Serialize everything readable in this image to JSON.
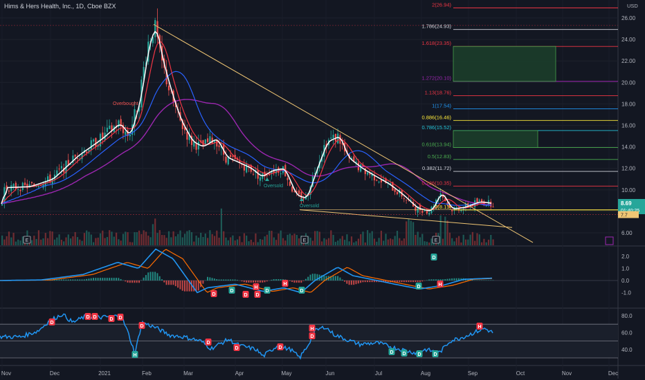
{
  "header": {
    "title": "Hims & Hers Health, Inc., 1D, Cboe BZX",
    "currency": "USD"
  },
  "price_axis": {
    "ticks": [
      "26.00",
      "24.00",
      "22.00",
      "20.00",
      "18.00",
      "16.00",
      "14.00",
      "12.00",
      "10.00",
      "8.00",
      "6.00"
    ]
  },
  "price_tag": {
    "price": "8.69",
    "countdown": "01:40:25",
    "lower_label": "7.7"
  },
  "fib_levels": [
    {
      "label": "2(26.94)",
      "value": 26.94,
      "color": "#f23645",
      "text_color": "#f23645"
    },
    {
      "label": "1.786(24.93)",
      "value": 24.93,
      "color": "#d1d4dc",
      "text_color": "#d1d4dc"
    },
    {
      "label": "1.618(23.35)",
      "value": 23.35,
      "color": "#f23645",
      "text_color": "#f23645"
    },
    {
      "label": "1.272(20.10)",
      "value": 20.1,
      "color": "#9c27b0",
      "text_color": "#9c27b0"
    },
    {
      "label": "1.13(18.76)",
      "value": 18.76,
      "color": "#f23645",
      "text_color": "#f23645"
    },
    {
      "label": "1(17.54)",
      "value": 17.54,
      "color": "#2196f3",
      "text_color": "#2196f3"
    },
    {
      "label": "0.886(16.46)",
      "value": 16.46,
      "color": "#ffeb3b",
      "text_color": "#ffeb3b"
    },
    {
      "label": "0.786(15.52)",
      "value": 15.52,
      "color": "#26c6da",
      "text_color": "#26c6da"
    },
    {
      "label": "0.618(13.94)",
      "value": 13.94,
      "color": "#4caf50",
      "text_color": "#4caf50"
    },
    {
      "label": "0.5(12.83)",
      "value": 12.83,
      "color": "#4caf50",
      "text_color": "#4caf50"
    },
    {
      "label": "0.382(11.72)",
      "value": 11.72,
      "color": "#d1d4dc",
      "text_color": "#d1d4dc"
    },
    {
      "label": "0.236(10.35)",
      "value": 10.35,
      "color": "#f23645",
      "text_color": "#f23645"
    },
    {
      "label": "0(8.13)",
      "value": 8.13,
      "color": "#ffeb3b",
      "text_color": "#ffeb3b"
    }
  ],
  "chart_labels": {
    "overbought": "Overbought",
    "oversold_1": "Oversold",
    "oversold_2": "Oversold",
    "earnings_marker": "E",
    "dividend_marker": "D",
    "high_marker": "H",
    "green_box_marker": "D"
  },
  "macd_axis": {
    "ticks": [
      "2.0",
      "1.0",
      "0.0",
      "-1.0"
    ]
  },
  "rsi_axis": {
    "ticks": [
      "80.0",
      "60.0",
      "40.0"
    ]
  },
  "x_axis": {
    "ticks": [
      "Nov",
      "Dec",
      "2021",
      "Feb",
      "Mar",
      "Apr",
      "May",
      "Jun",
      "Jul",
      "Aug",
      "Sep",
      "Oct",
      "Nov",
      "Dec"
    ]
  },
  "colors": {
    "background": "#131722",
    "up": "#26a69a",
    "down": "#ef5350",
    "ema_fast": "#ffffff",
    "ema_mid": "#f23645",
    "sma_slow": "#2962ff",
    "sma_long": "#9c27b0",
    "trendline": "#f0c674",
    "macd": "#2196f3",
    "signal": "#ff6d00",
    "rsi": "#2196f3"
  },
  "chart_data": [
    {
      "type": "candlestick",
      "title": "Hims & Hers Health, Inc., 1D, Cboe BZX",
      "ylim": [
        5.0,
        27.5
      ],
      "x_ticks": [
        "Nov",
        "Dec",
        "2021",
        "Feb",
        "Mar",
        "Apr",
        "May",
        "Jun",
        "Jul",
        "Aug",
        "Sep",
        "Oct",
        "Nov",
        "Dec"
      ],
      "key_points": [
        {
          "date": "Nov",
          "close": 10.2
        },
        {
          "date": "Dec",
          "close": 11.0
        },
        {
          "date": "2021",
          "close": 14.5
        },
        {
          "date": "Feb",
          "close": 25.3
        },
        {
          "date": "Mar",
          "close": 14.5
        },
        {
          "date": "Apr",
          "close": 12.0
        },
        {
          "date": "May",
          "close": 9.2
        },
        {
          "date": "Jun",
          "close": 15.0
        },
        {
          "date": "Jul",
          "close": 11.2
        },
        {
          "date": "Aug",
          "close": 8.4
        },
        {
          "date": "Sep",
          "close": 8.7
        }
      ],
      "last_price": 8.69
    },
    {
      "type": "line",
      "name": "MACD",
      "ylim": [
        -1.5,
        2.5
      ],
      "x_ticks": [
        "Nov",
        "Dec",
        "2021",
        "Feb",
        "Mar",
        "Apr",
        "May",
        "Jun",
        "Jul",
        "Aug",
        "Sep",
        "Oct",
        "Nov",
        "Dec"
      ]
    },
    {
      "type": "line",
      "name": "RSI",
      "ylim": [
        25,
        90
      ],
      "x_ticks": [
        "Nov",
        "Dec",
        "2021",
        "Feb",
        "Mar",
        "Apr",
        "May",
        "Jun",
        "Jul",
        "Aug",
        "Sep",
        "Oct",
        "Nov",
        "Dec"
      ]
    }
  ]
}
